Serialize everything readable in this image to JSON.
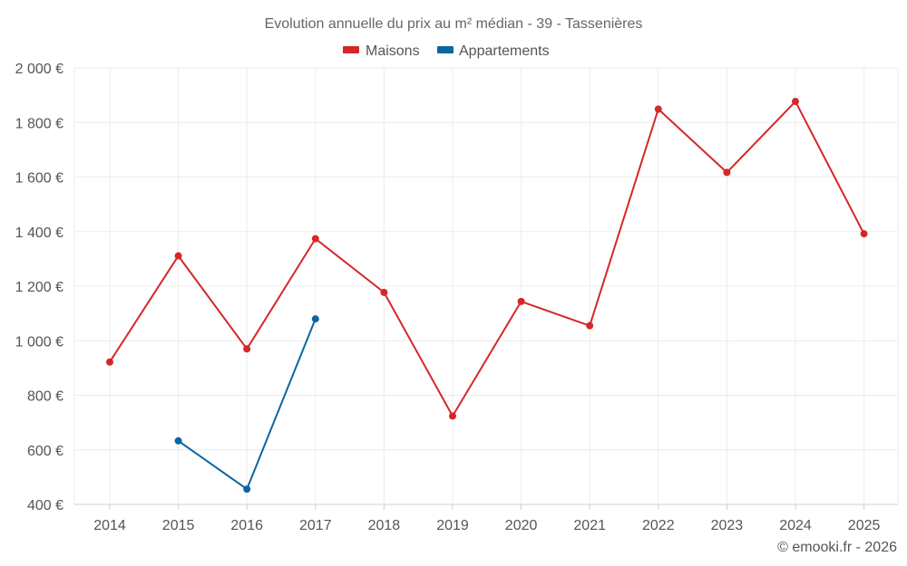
{
  "chart_data": {
    "type": "line",
    "title": "Evolution annuelle du prix au m² médian - 39 - Tassenières",
    "categories": [
      "2014",
      "2015",
      "2016",
      "2017",
      "2018",
      "2019",
      "2020",
      "2021",
      "2022",
      "2023",
      "2024",
      "2025"
    ],
    "series": [
      {
        "name": "Maisons",
        "color": "#d62728",
        "values": [
          922,
          1311,
          970,
          1374,
          1177,
          724,
          1144,
          1055,
          1849,
          1617,
          1877,
          1392
        ]
      },
      {
        "name": "Appartements",
        "color": "#0a66a0",
        "values": [
          null,
          633,
          456,
          1080,
          null,
          null,
          null,
          null,
          null,
          null,
          null,
          null
        ]
      }
    ],
    "ylim": [
      400,
      2000
    ],
    "yticks": [
      400,
      600,
      800,
      1000,
      1200,
      1400,
      1600,
      1800,
      2000
    ],
    "ytick_labels": [
      "400 €",
      "600 €",
      "800 €",
      "1 000 €",
      "1 200 €",
      "1 400 €",
      "1 600 €",
      "1 800 €",
      "2 000 €"
    ],
    "xlabel": "",
    "ylabel": "",
    "legend": "top-center",
    "grid": true
  },
  "credit": "© emooki.fr - 2026"
}
